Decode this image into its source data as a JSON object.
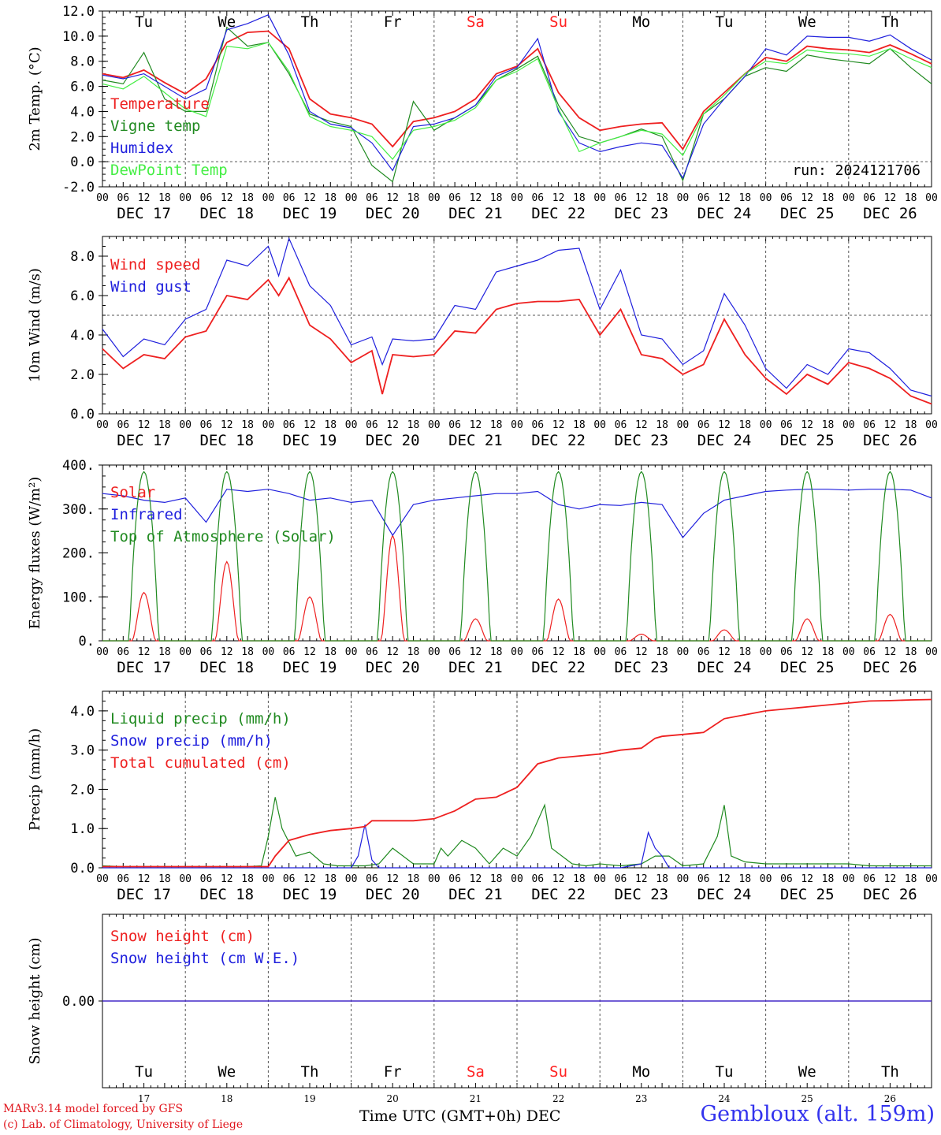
{
  "run_label": "run: 2024121706",
  "dates": [
    "DEC 17",
    "DEC 18",
    "DEC 19",
    "DEC 20",
    "DEC 21",
    "DEC 22",
    "DEC 23",
    "DEC 24",
    "DEC 25",
    "DEC 26"
  ],
  "date_numbers": [
    "17",
    "18",
    "19",
    "20",
    "21",
    "22",
    "23",
    "24",
    "25",
    "26"
  ],
  "weekdays": [
    "Tu",
    "We",
    "Th",
    "Fr",
    "Sa",
    "Su",
    "Mo",
    "Tu",
    "We",
    "Th"
  ],
  "weekend_color": "#ff2020",
  "weekend_index": [
    4,
    5
  ],
  "hour_labels": [
    "00",
    "06",
    "12",
    "18"
  ],
  "footer": {
    "credit_line1": "MARv3.14 model forced by GFS",
    "credit_line2": "(c) Lab. of Climatology, University of Liege",
    "time_label": "Time UTC (GMT+0h) DEC",
    "station": "Gembloux (alt. 159m)"
  },
  "chart_data": [
    {
      "type": "line",
      "ylabel": "2m Temp. (°C)",
      "ylim": [
        -2,
        12
      ],
      "yticks": [
        "-2.0",
        "0.0",
        "2.0",
        "4.0",
        "6.0",
        "8.0",
        "10.0",
        "12.0"
      ],
      "reference_line": 0,
      "x_unit": "hours since DEC 17 00 UTC",
      "series": [
        {
          "name": "Temperature",
          "color": "#ee2020",
          "x": [
            0,
            6,
            12,
            18,
            24,
            30,
            36,
            42,
            48,
            54,
            60,
            66,
            72,
            78,
            84,
            90,
            96,
            102,
            108,
            114,
            120,
            126,
            132,
            138,
            144,
            150,
            156,
            162,
            168,
            174,
            180,
            186,
            192,
            198,
            204,
            210,
            216,
            222,
            228,
            234,
            240
          ],
          "values": [
            7.0,
            6.7,
            7.3,
            6.3,
            5.4,
            6.6,
            9.5,
            10.3,
            10.4,
            9.0,
            5.0,
            3.8,
            3.5,
            3.0,
            1.2,
            3.2,
            3.5,
            4.0,
            5.0,
            7.0,
            7.6,
            9.0,
            5.5,
            3.5,
            2.5,
            2.8,
            3.0,
            3.1,
            1.0,
            4.0,
            5.5,
            7.0,
            8.3,
            8.0,
            9.2,
            9.0,
            8.9,
            8.7,
            9.3,
            8.6,
            7.8
          ]
        },
        {
          "name": "Vigne temp",
          "color": "#208a20",
          "x": [
            0,
            6,
            12,
            18,
            24,
            30,
            36,
            42,
            48,
            54,
            60,
            66,
            72,
            78,
            84,
            90,
            96,
            102,
            108,
            114,
            120,
            126,
            132,
            138,
            144,
            150,
            156,
            162,
            168,
            174,
            180,
            186,
            192,
            198,
            204,
            210,
            216,
            222,
            228,
            234,
            240
          ],
          "values": [
            6.5,
            6.2,
            8.7,
            5.0,
            4.0,
            4.0,
            10.7,
            9.2,
            9.5,
            7.0,
            3.8,
            3.2,
            2.8,
            -0.3,
            -1.6,
            4.8,
            2.5,
            3.5,
            4.5,
            6.5,
            7.4,
            8.4,
            4.5,
            2.0,
            1.5,
            2.0,
            2.6,
            2.0,
            -1.5,
            3.8,
            5.0,
            6.8,
            7.5,
            7.2,
            8.5,
            8.2,
            8.0,
            7.8,
            9.0,
            7.5,
            6.2
          ]
        },
        {
          "name": "Humidex",
          "color": "#2020dd",
          "x": [
            0,
            6,
            12,
            18,
            24,
            30,
            36,
            42,
            48,
            54,
            60,
            66,
            72,
            78,
            84,
            90,
            96,
            102,
            108,
            114,
            120,
            126,
            132,
            138,
            144,
            150,
            156,
            162,
            168,
            174,
            180,
            186,
            192,
            198,
            204,
            210,
            216,
            222,
            228,
            234,
            240
          ],
          "values": [
            6.9,
            6.6,
            7.0,
            6.0,
            5.0,
            5.8,
            10.5,
            11.0,
            11.7,
            8.5,
            4.0,
            3.0,
            2.7,
            1.5,
            -0.7,
            2.8,
            3.0,
            3.5,
            4.5,
            6.8,
            7.5,
            9.8,
            4.0,
            1.5,
            0.8,
            1.2,
            1.5,
            1.3,
            -1.3,
            3.0,
            5.0,
            6.8,
            9.0,
            8.5,
            10.0,
            9.9,
            9.9,
            9.6,
            10.1,
            9.0,
            8.1
          ]
        },
        {
          "name": "DewPoint Temp",
          "color": "#44ee44",
          "x": [
            0,
            6,
            12,
            18,
            24,
            30,
            36,
            42,
            48,
            54,
            60,
            66,
            72,
            78,
            84,
            90,
            96,
            102,
            108,
            114,
            120,
            126,
            132,
            138,
            144,
            150,
            156,
            162,
            168,
            174,
            180,
            186,
            192,
            198,
            204,
            210,
            216,
            222,
            228,
            234,
            240
          ],
          "values": [
            6.2,
            5.8,
            6.8,
            5.5,
            4.2,
            3.6,
            9.2,
            9.0,
            9.5,
            7.2,
            3.6,
            2.8,
            2.5,
            2.0,
            0.2,
            2.5,
            2.8,
            3.3,
            4.3,
            6.5,
            7.2,
            8.2,
            4.2,
            0.8,
            1.5,
            2.0,
            2.5,
            2.2,
            0.5,
            3.8,
            5.3,
            7.0,
            8.0,
            7.8,
            8.9,
            8.7,
            8.6,
            8.4,
            9.0,
            8.2,
            7.5
          ]
        }
      ]
    },
    {
      "type": "line",
      "ylabel": "10m Wind (m/s)",
      "ylim": [
        0,
        9
      ],
      "yticks": [
        "0.0",
        "2.0",
        "4.0",
        "6.0",
        "8.0"
      ],
      "reference_line": 5,
      "x_unit": "hours since DEC 17 00 UTC",
      "series": [
        {
          "name": "Wind speed",
          "color": "#ee2020",
          "x": [
            0,
            6,
            12,
            18,
            24,
            30,
            36,
            42,
            48,
            51,
            54,
            60,
            66,
            72,
            78,
            81,
            84,
            90,
            96,
            102,
            108,
            114,
            120,
            126,
            132,
            138,
            144,
            150,
            156,
            162,
            168,
            174,
            180,
            186,
            192,
            198,
            204,
            210,
            216,
            222,
            228,
            234,
            240
          ],
          "values": [
            3.3,
            2.3,
            3.0,
            2.8,
            3.9,
            4.2,
            6.0,
            5.8,
            6.8,
            6.0,
            6.9,
            4.5,
            3.8,
            2.6,
            3.2,
            1.0,
            3.0,
            2.9,
            3.0,
            4.2,
            4.1,
            5.3,
            5.6,
            5.7,
            5.7,
            5.8,
            4.0,
            5.3,
            3.0,
            2.8,
            2.0,
            2.5,
            4.8,
            3.0,
            1.8,
            1.0,
            2.0,
            1.5,
            2.6,
            2.3,
            1.8,
            0.9,
            0.5
          ]
        },
        {
          "name": "Wind gust",
          "color": "#2020dd",
          "x": [
            0,
            6,
            12,
            18,
            24,
            30,
            36,
            42,
            48,
            51,
            54,
            60,
            66,
            72,
            78,
            81,
            84,
            90,
            96,
            102,
            108,
            114,
            120,
            126,
            132,
            138,
            144,
            150,
            156,
            162,
            168,
            174,
            180,
            186,
            192,
            198,
            204,
            210,
            216,
            222,
            228,
            234,
            240
          ],
          "values": [
            4.3,
            2.9,
            3.8,
            3.5,
            4.8,
            5.3,
            7.8,
            7.5,
            8.5,
            7.0,
            8.9,
            6.5,
            5.5,
            3.5,
            3.9,
            2.5,
            3.8,
            3.7,
            3.8,
            5.5,
            5.3,
            7.2,
            7.5,
            7.8,
            8.3,
            8.4,
            5.3,
            7.3,
            4.0,
            3.8,
            2.5,
            3.2,
            6.1,
            4.5,
            2.3,
            1.3,
            2.5,
            2.0,
            3.3,
            3.1,
            2.3,
            1.2,
            0.9
          ]
        }
      ]
    },
    {
      "type": "line",
      "ylabel": "Energy fluxes (W/m²)",
      "ylim": [
        0,
        400
      ],
      "yticks": [
        "0.",
        "100.",
        "200.",
        "300.",
        "400."
      ],
      "x_unit": "hours since DEC 17 00 UTC",
      "series": [
        {
          "name": "Solar",
          "color": "#ee2020",
          "peak_hours": [
            12,
            36,
            60,
            84,
            108,
            132,
            156,
            180,
            204,
            228
          ],
          "peaks": [
            110,
            180,
            100,
            240,
            50,
            95,
            15,
            25,
            50,
            60
          ]
        },
        {
          "name": "Infrared",
          "color": "#2020dd",
          "x": [
            0,
            6,
            12,
            18,
            24,
            30,
            36,
            42,
            48,
            54,
            60,
            66,
            72,
            78,
            84,
            90,
            96,
            102,
            108,
            114,
            120,
            126,
            132,
            138,
            144,
            150,
            156,
            162,
            168,
            174,
            180,
            186,
            192,
            198,
            204,
            210,
            216,
            222,
            228,
            234,
            240
          ],
          "values": [
            335,
            330,
            320,
            315,
            325,
            270,
            345,
            340,
            345,
            335,
            320,
            325,
            315,
            320,
            240,
            310,
            320,
            325,
            330,
            335,
            335,
            340,
            310,
            300,
            310,
            308,
            315,
            310,
            235,
            290,
            320,
            330,
            340,
            343,
            345,
            345,
            343,
            345,
            345,
            343,
            325
          ]
        },
        {
          "name": "Top of Atmosphere (Solar)",
          "color": "#208a20",
          "peak_hours": [
            12,
            36,
            60,
            84,
            108,
            132,
            156,
            180,
            204,
            228
          ],
          "peaks": [
            385,
            385,
            385,
            385,
            385,
            385,
            385,
            385,
            385,
            385
          ]
        }
      ]
    },
    {
      "type": "line",
      "ylabel": "Precip (mm/h)",
      "ylim": [
        0,
        4.5
      ],
      "yticks": [
        "0.0",
        "1.0",
        "2.0",
        "3.0",
        "4.0"
      ],
      "x_unit": "hours since DEC 17 00 UTC",
      "series": [
        {
          "name": "Liquid precip (mm/h)",
          "color": "#208a20",
          "x": [
            0,
            6,
            12,
            18,
            24,
            30,
            36,
            42,
            46,
            48,
            50,
            52,
            56,
            60,
            64,
            68,
            72,
            76,
            80,
            84,
            90,
            96,
            98,
            100,
            104,
            108,
            112,
            116,
            120,
            124,
            128,
            130,
            136,
            140,
            144,
            150,
            156,
            160,
            164,
            168,
            174,
            178,
            180,
            182,
            186,
            192,
            198,
            204,
            210,
            216,
            222,
            228,
            234,
            240
          ],
          "values": [
            0.05,
            0.03,
            0.03,
            0.03,
            0.03,
            0.03,
            0.03,
            0.03,
            0.05,
            0.8,
            1.8,
            1.0,
            0.3,
            0.4,
            0.1,
            0.05,
            0.05,
            0.05,
            0.1,
            0.5,
            0.1,
            0.1,
            0.5,
            0.3,
            0.7,
            0.5,
            0.1,
            0.5,
            0.3,
            0.8,
            1.6,
            0.5,
            0.1,
            0.05,
            0.1,
            0.05,
            0.1,
            0.3,
            0.3,
            0.05,
            0.1,
            0.8,
            1.6,
            0.3,
            0.15,
            0.1,
            0.1,
            0.1,
            0.1,
            0.1,
            0.05,
            0.05,
            0.05,
            0.05
          ]
        },
        {
          "name": "Snow precip (mm/h)",
          "color": "#2020dd",
          "x": [
            0,
            72,
            74,
            76,
            78,
            80,
            150,
            156,
            158,
            160,
            162,
            164,
            240
          ],
          "values": [
            0,
            0,
            0.3,
            1.1,
            0.2,
            0,
            0,
            0.1,
            0.9,
            0.5,
            0.3,
            0,
            0
          ]
        },
        {
          "name": "Total cumulated (cm)",
          "color": "#ee2020",
          "x": [
            0,
            24,
            48,
            50,
            54,
            60,
            66,
            72,
            76,
            78,
            90,
            96,
            102,
            108,
            114,
            120,
            126,
            132,
            138,
            144,
            150,
            156,
            160,
            162,
            168,
            174,
            180,
            186,
            192,
            198,
            204,
            210,
            216,
            222,
            228,
            234,
            240
          ],
          "values": [
            0.03,
            0.03,
            0.03,
            0.3,
            0.7,
            0.85,
            0.95,
            1.0,
            1.05,
            1.2,
            1.2,
            1.25,
            1.45,
            1.75,
            1.8,
            2.05,
            2.65,
            2.8,
            2.85,
            2.9,
            3.0,
            3.05,
            3.3,
            3.35,
            3.4,
            3.45,
            3.8,
            3.9,
            4.0,
            4.05,
            4.1,
            4.15,
            4.2,
            4.25,
            4.26,
            4.28,
            4.29
          ]
        }
      ]
    },
    {
      "type": "line",
      "ylabel": "Snow height (cm)",
      "ylim": [
        -1,
        1
      ],
      "yticks": [
        "0.00"
      ],
      "x_unit": "hours since DEC 17 00 UTC",
      "series": [
        {
          "name": "Snow height (cm)",
          "color": "#ee2020",
          "x": [
            0,
            240
          ],
          "values": [
            0,
            0
          ]
        },
        {
          "name": "Snow height (cm W.E.)",
          "color": "#2020dd",
          "x": [
            0,
            240
          ],
          "values": [
            0,
            0
          ]
        }
      ]
    }
  ]
}
